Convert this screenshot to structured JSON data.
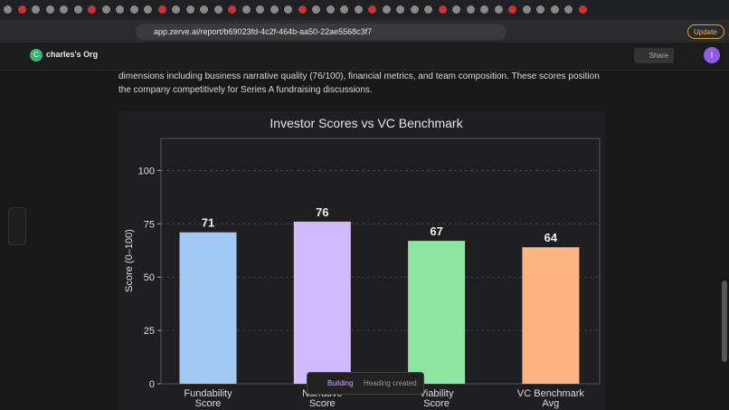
{
  "browser": {
    "url": "app.zerve.ai/report/b69023fd-4c2f-464b-aa50-22ae5568c3f7",
    "update_button": "Update"
  },
  "app_header": {
    "org_initial": "C",
    "org_name": "charles's Org",
    "share_button": "Share",
    "user_initial": "I"
  },
  "report": {
    "paragraph": "dimensions including business narrative quality (76/100), financial metrics, and team composition. These scores position the company competitively for Series A fundraising discussions."
  },
  "chart_data": {
    "type": "bar",
    "title": "Investor Scores vs VC Benchmark",
    "y_label": "Score (0–100)",
    "categories": [
      "Fundability\nScore",
      "Narrative\nScore",
      "Viability\nScore",
      "VC Benchmark\nAvg"
    ],
    "values": [
      71,
      76,
      67,
      64
    ],
    "colors": [
      "#a1c9f4",
      "#d0bbff",
      "#8de5a1",
      "#ffb482"
    ],
    "ylim": [
      0,
      115
    ],
    "yticks": [
      0,
      25,
      50,
      75,
      100
    ],
    "grid": true
  },
  "toast": {
    "status": "Building",
    "message": "Heading created"
  }
}
